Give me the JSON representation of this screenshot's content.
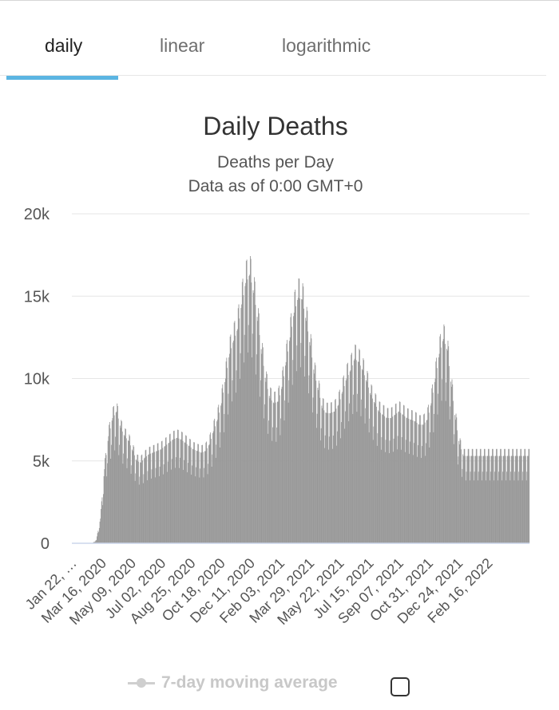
{
  "tabs": [
    {
      "label": "daily",
      "active": true
    },
    {
      "label": "linear",
      "active": false
    },
    {
      "label": "logarithmic",
      "active": false
    }
  ],
  "legend": {
    "label": "7-day moving average",
    "checked": false
  },
  "colors": {
    "bar": "#999999",
    "accent": "#5bb5e2",
    "grid": "#e6e6e6"
  },
  "chart_data": {
    "type": "bar",
    "title": "Daily Deaths",
    "subtitle_lines": [
      "Deaths per Day",
      "Data as of 0:00 GMT+0"
    ],
    "yaxis": {
      "min": 0,
      "max": 20000,
      "ticks": [
        0,
        5000,
        10000,
        15000,
        20000
      ],
      "tick_labels": [
        "0",
        "5k",
        "10k",
        "15k",
        "20k"
      ]
    },
    "x_tick_labels": [
      "Jan 22, …",
      "Mar 16, 2020",
      "May 09, 2020",
      "Jul 02, 2020",
      "Aug 25, 2020",
      "Oct 18, 2020",
      "Dec 11, 2020",
      "Feb 03, 2021",
      "Mar 29, 2021",
      "May 22, 2021",
      "Jul 15, 2021",
      "Sep 07, 2021",
      "Oct 31, 2021",
      "Dec 24, 2021",
      "Feb 16, 2022"
    ],
    "x_start": "2020-01-22",
    "x_end": "2022-03-25",
    "weekly_approx_values": [
      0,
      0,
      0,
      0,
      0,
      0,
      200,
      1500,
      4500,
      6500,
      7600,
      8000,
      7000,
      6500,
      6200,
      5600,
      5000,
      4900,
      5200,
      5400,
      5500,
      5600,
      5700,
      5900,
      6100,
      6300,
      6400,
      6300,
      6100,
      5900,
      5700,
      5600,
      5500,
      5600,
      6000,
      6800,
      7500,
      8500,
      10000,
      11500,
      12300,
      13000,
      14500,
      15800,
      16300,
      15200,
      13500,
      11500,
      9800,
      8800,
      8500,
      8600,
      9500,
      11000,
      12500,
      14000,
      14900,
      14800,
      13500,
      12000,
      10300,
      9300,
      8200,
      7900,
      7900,
      8000,
      8400,
      9200,
      10000,
      10500,
      11200,
      11000,
      10500,
      9800,
      9000,
      8500,
      8000,
      7800,
      7600,
      7600,
      7800,
      8000,
      7800,
      7600,
      7500,
      7400,
      7200,
      7200,
      7500,
      8500,
      10000,
      11500,
      12400,
      11700,
      9500,
      7500,
      6000,
      5300
    ]
  }
}
